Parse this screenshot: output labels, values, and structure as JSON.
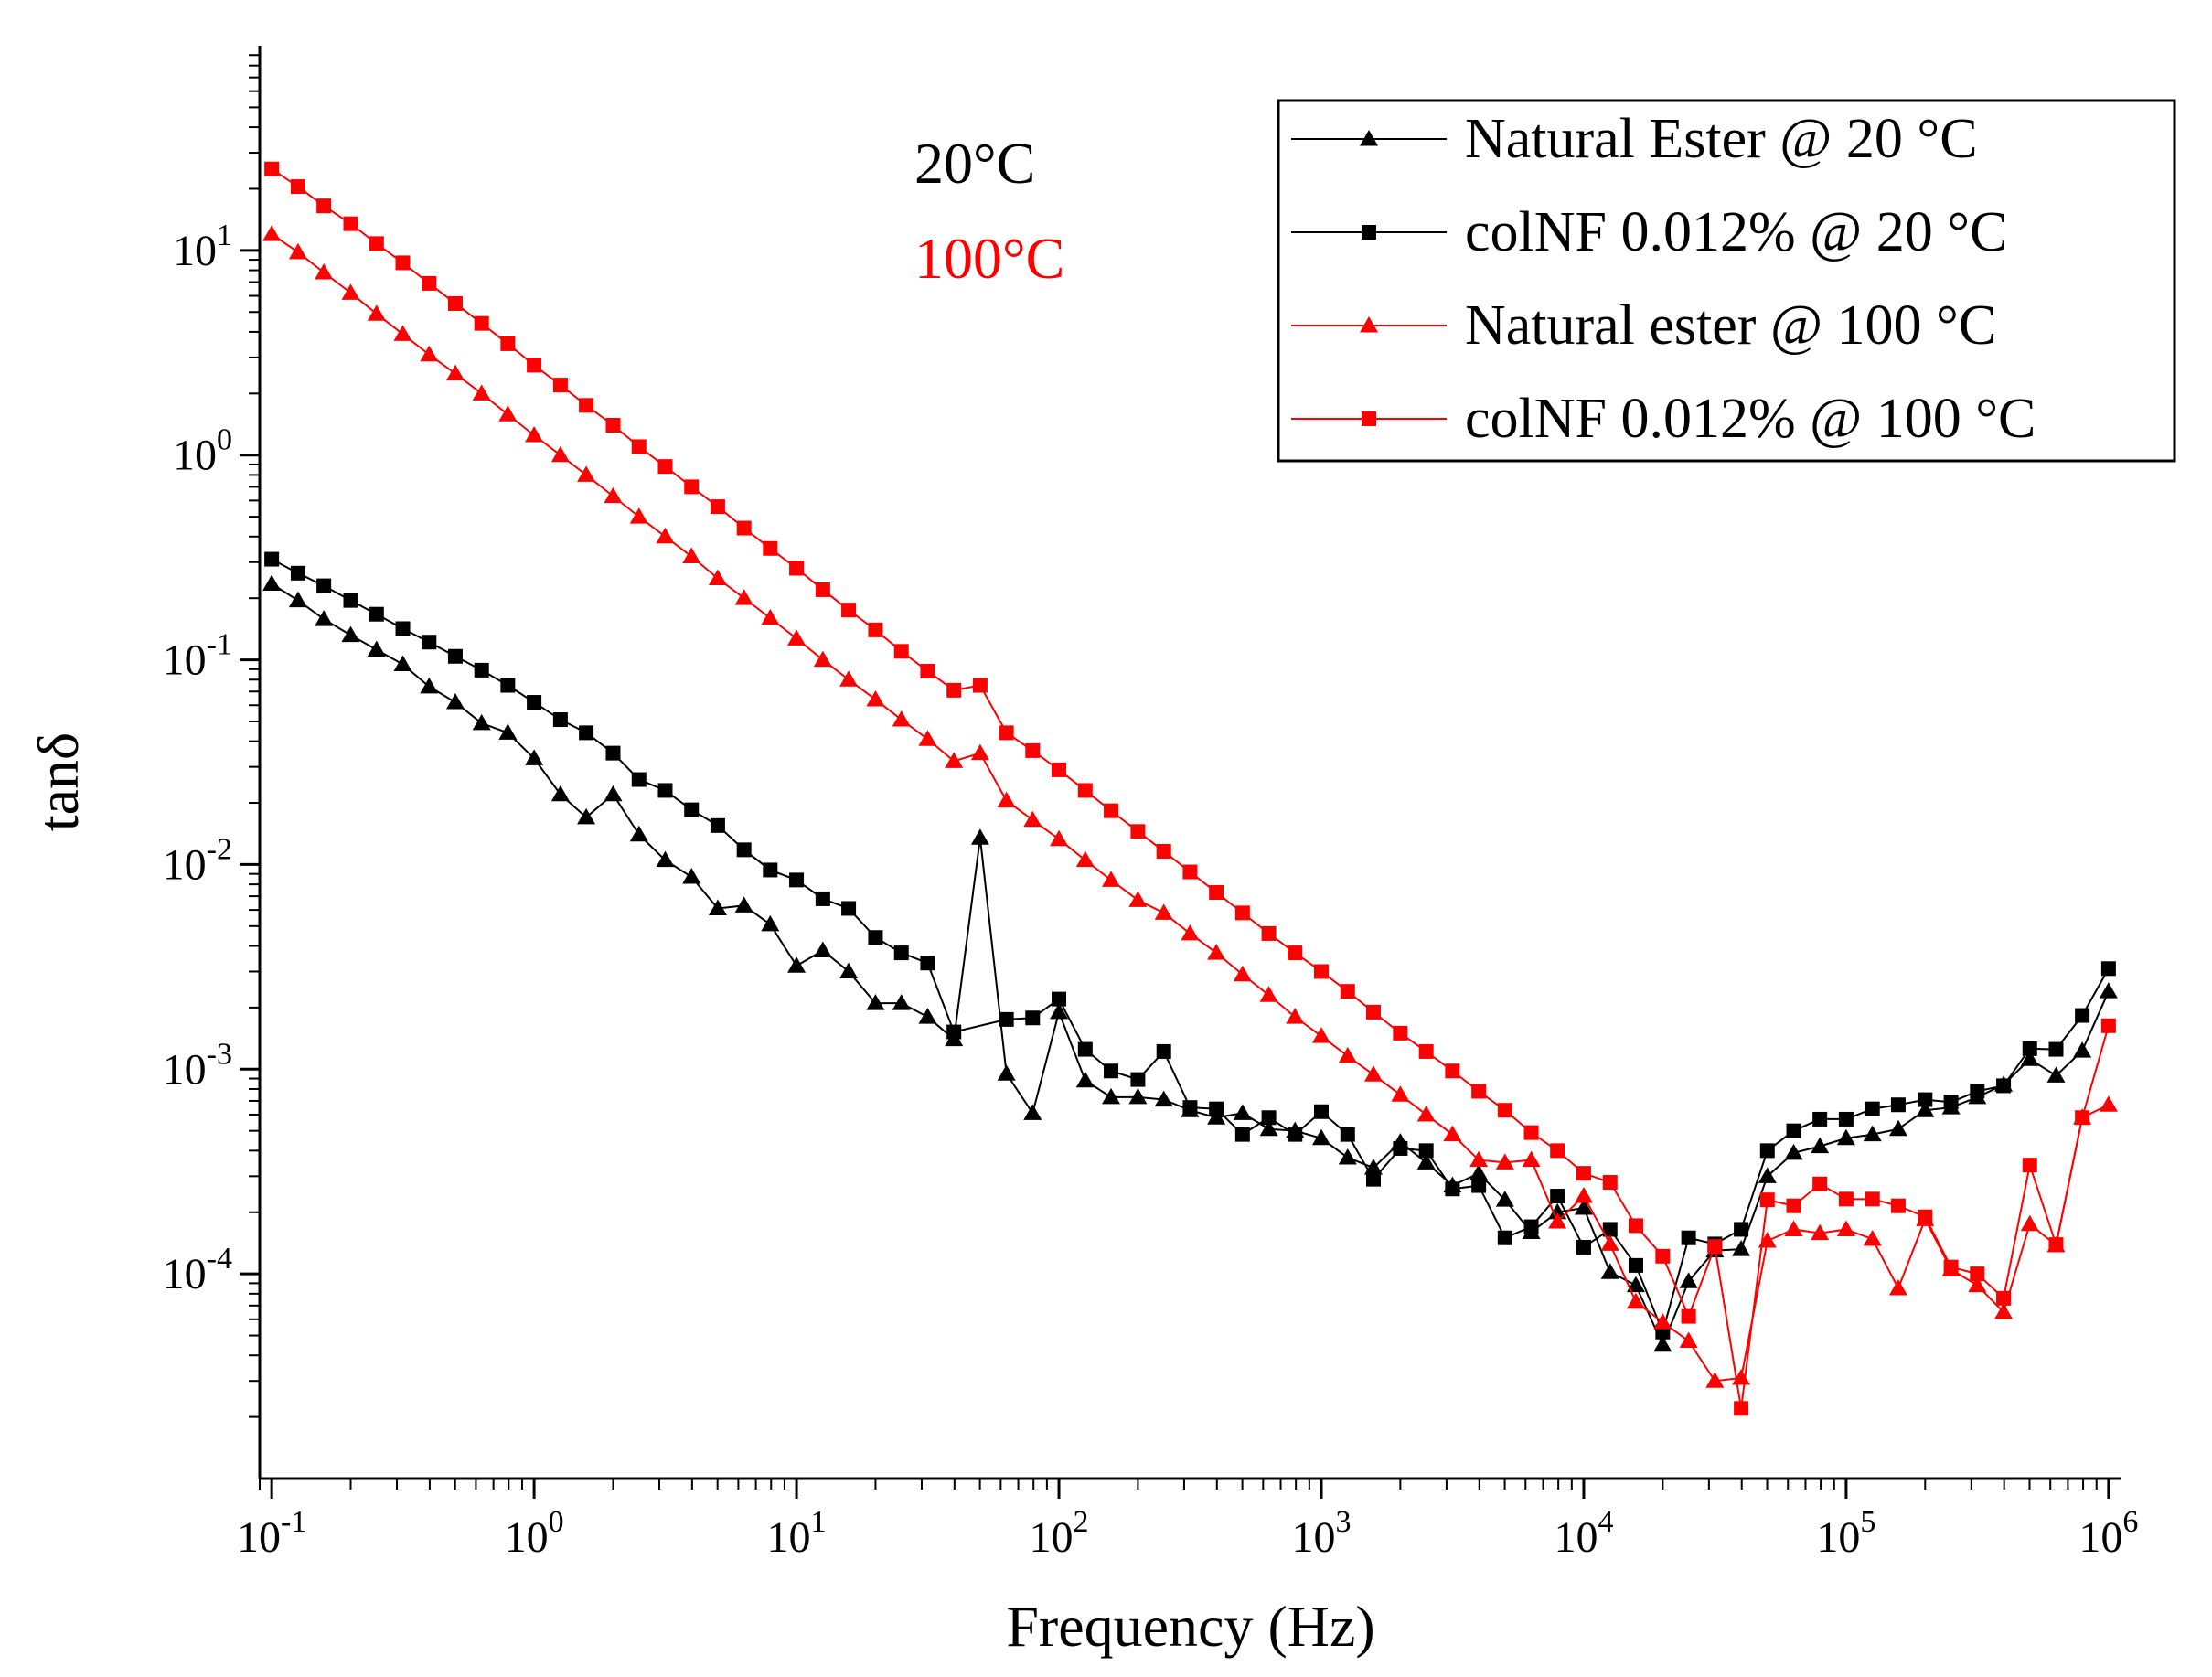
{
  "chart_data": {
    "type": "line",
    "xscale": "log",
    "yscale": "log",
    "xlabel": "Frequency (Hz)",
    "ylabel": "tanδ",
    "xlim": [
      0.09,
      1120000.0
    ],
    "ylim": [
      1e-05,
      100.0
    ],
    "xticks": [
      {
        "base": "10",
        "exp": "-1",
        "value": 0.1
      },
      {
        "base": "10",
        "exp": "0",
        "value": 1
      },
      {
        "base": "10",
        "exp": "1",
        "value": 10
      },
      {
        "base": "10",
        "exp": "2",
        "value": 100
      },
      {
        "base": "10",
        "exp": "3",
        "value": 1000
      },
      {
        "base": "10",
        "exp": "4",
        "value": 10000
      },
      {
        "base": "10",
        "exp": "5",
        "value": 100000
      },
      {
        "base": "10",
        "exp": "6",
        "value": 1000000
      }
    ],
    "yticks": [
      {
        "base": "10",
        "exp": "1",
        "value": 10
      },
      {
        "base": "10",
        "exp": "0",
        "value": 1
      },
      {
        "base": "10",
        "exp": "-1",
        "value": 0.1
      },
      {
        "base": "10",
        "exp": "-2",
        "value": 0.01
      },
      {
        "base": "10",
        "exp": "-3",
        "value": 0.001
      },
      {
        "base": "10",
        "exp": "-4",
        "value": 0.0001
      }
    ],
    "annotations": [
      {
        "text": "20°C",
        "color": "#000000"
      },
      {
        "text": "100°C",
        "color": "#ff0000"
      }
    ],
    "legend_position": "top-right",
    "series": [
      {
        "name": "Natural Ester @ 20 °C",
        "color": "#000000",
        "marker": "triangle",
        "x": [
          0.1,
          0.126,
          0.158,
          0.2,
          0.251,
          0.316,
          0.398,
          0.501,
          0.631,
          0.794,
          1,
          1.26,
          1.58,
          2,
          2.51,
          3.16,
          3.98,
          5.01,
          6.31,
          7.94,
          10,
          12.6,
          15.8,
          20,
          25.1,
          31.6,
          39.8,
          50.1,
          63.1,
          79.4,
          100,
          126,
          158,
          200,
          251,
          316,
          398,
          501,
          631,
          794,
          1000,
          1260,
          1580,
          2000,
          2510,
          3160,
          3980,
          5010,
          6310,
          7940,
          10000,
          12600,
          15800,
          20000,
          25100,
          31600,
          39800,
          50100,
          63100,
          79400,
          100000,
          126000,
          158000,
          200000,
          251000,
          316000,
          398000,
          501000,
          631000,
          794000,
          1000000
        ],
        "values": [
          0.235,
          0.195,
          0.158,
          0.132,
          0.112,
          0.095,
          0.074,
          0.062,
          0.049,
          0.044,
          0.033,
          0.022,
          0.017,
          0.022,
          0.014,
          0.0105,
          0.0087,
          0.0061,
          0.0063,
          0.0051,
          0.0032,
          0.0038,
          0.003,
          0.0021,
          0.0021,
          0.0018,
          0.0014,
          0.0135,
          0.00095,
          0.00061,
          0.0019,
          0.00088,
          0.00073,
          0.00073,
          0.00071,
          0.00063,
          0.00058,
          0.00061,
          0.00051,
          0.0005,
          0.00046,
          0.00037,
          0.00033,
          0.00044,
          0.00035,
          0.00027,
          0.00031,
          0.00023,
          0.00016,
          0.0002,
          0.00021,
          0.000102,
          8.8e-05,
          4.5e-05,
          9.2e-05,
          0.00013,
          0.000132,
          0.0003,
          0.00039,
          0.00042,
          0.00046,
          0.00048,
          0.00051,
          0.00063,
          0.00065,
          0.00073,
          0.00084,
          0.00112,
          0.00093,
          0.00123,
          0.0024
        ]
      },
      {
        "name": "colNF 0.012% @ 20 °C",
        "color": "#000000",
        "marker": "square",
        "x": [
          0.1,
          0.126,
          0.158,
          0.2,
          0.251,
          0.316,
          0.398,
          0.501,
          0.631,
          0.794,
          1,
          1.26,
          1.58,
          2,
          2.51,
          3.16,
          3.98,
          5.01,
          6.31,
          7.94,
          10,
          12.6,
          15.8,
          20,
          25.1,
          31.6,
          39.8,
          63.1,
          79.4,
          100,
          126,
          158,
          200,
          251,
          316,
          398,
          501,
          631,
          794,
          1000,
          1260,
          1580,
          2000,
          2510,
          3160,
          3980,
          5010,
          6310,
          7940,
          10000,
          12600,
          15800,
          20000,
          25100,
          31600,
          39800,
          50100,
          63100,
          79400,
          100000,
          126000,
          158000,
          200000,
          251000,
          316000,
          398000,
          501000,
          631000,
          794000,
          1000000
        ],
        "values": [
          0.31,
          0.265,
          0.23,
          0.195,
          0.167,
          0.142,
          0.122,
          0.104,
          0.089,
          0.075,
          0.062,
          0.051,
          0.044,
          0.035,
          0.026,
          0.023,
          0.0185,
          0.0155,
          0.0118,
          0.0094,
          0.0084,
          0.0068,
          0.0061,
          0.0044,
          0.0037,
          0.0033,
          0.00152,
          0.00175,
          0.00178,
          0.0022,
          0.00125,
          0.00098,
          0.00089,
          0.00122,
          0.00065,
          0.00064,
          0.00048,
          0.00058,
          0.00048,
          0.00062,
          0.00048,
          0.00029,
          0.00041,
          0.0004,
          0.00026,
          0.00027,
          0.00015,
          0.00017,
          0.00024,
          0.000135,
          0.000165,
          0.00011,
          5.2e-05,
          0.00015,
          0.00014,
          0.000165,
          0.0004,
          0.0005,
          0.00057,
          0.00057,
          0.00064,
          0.00067,
          0.00071,
          0.00069,
          0.00078,
          0.00083,
          0.00126,
          0.00125,
          0.00183,
          0.0031
        ]
      },
      {
        "name": "Natural ester @ 100 °C",
        "color": "#ff0000",
        "marker": "triangle",
        "x": [
          0.1,
          0.126,
          0.158,
          0.2,
          0.251,
          0.316,
          0.398,
          0.501,
          0.631,
          0.794,
          1,
          1.26,
          1.58,
          2,
          2.51,
          3.16,
          3.98,
          5.01,
          6.31,
          7.94,
          10,
          12.6,
          15.8,
          20,
          25.1,
          31.6,
          39.8,
          50.1,
          63.1,
          79.4,
          100,
          126,
          158,
          200,
          251,
          316,
          398,
          501,
          631,
          794,
          1000,
          1260,
          1580,
          2000,
          2510,
          3160,
          3980,
          5010,
          6310,
          7940,
          10000,
          12600,
          15800,
          20000,
          25100,
          31600,
          39800,
          50100,
          63100,
          79400,
          100000,
          126000,
          158000,
          200000,
          251000,
          316000,
          398000,
          501000,
          631000,
          794000,
          1000000
        ],
        "values": [
          12.0,
          9.8,
          7.8,
          6.2,
          4.9,
          3.9,
          3.1,
          2.5,
          2.0,
          1.58,
          1.25,
          1.0,
          0.8,
          0.63,
          0.5,
          0.4,
          0.32,
          0.25,
          0.2,
          0.16,
          0.127,
          0.1,
          0.08,
          0.064,
          0.051,
          0.041,
          0.032,
          0.035,
          0.0205,
          0.0165,
          0.0133,
          0.0105,
          0.0084,
          0.0067,
          0.0058,
          0.0046,
          0.0037,
          0.0029,
          0.0023,
          0.0018,
          0.00145,
          0.00116,
          0.00094,
          0.00075,
          0.0006,
          0.00048,
          0.00036,
          0.00035,
          0.00036,
          0.00018,
          0.00024,
          0.00014,
          7.3e-05,
          5.8e-05,
          4.7e-05,
          3e-05,
          3.1e-05,
          0.000145,
          0.000165,
          0.000158,
          0.000165,
          0.000148,
          8.5e-05,
          0.000185,
          0.000105,
          8.8e-05,
          6.5e-05,
          0.000175,
          0.000138,
          0.00058,
          0.00067
        ]
      },
      {
        "name": "colNF 0.012% @ 100 °C",
        "color": "#ff0000",
        "marker": "square",
        "x": [
          0.1,
          0.126,
          0.158,
          0.2,
          0.251,
          0.316,
          0.398,
          0.501,
          0.631,
          0.794,
          1,
          1.26,
          1.58,
          2,
          2.51,
          3.16,
          3.98,
          5.01,
          6.31,
          7.94,
          10,
          12.6,
          15.8,
          20,
          25.1,
          31.6,
          39.8,
          50.1,
          63.1,
          79.4,
          100,
          126,
          158,
          200,
          251,
          316,
          398,
          501,
          631,
          794,
          1000,
          1260,
          1580,
          2000,
          2510,
          3160,
          3980,
          5010,
          6310,
          7940,
          10000,
          12600,
          15800,
          20000,
          25100,
          31600,
          39800,
          50100,
          63100,
          79400,
          100000,
          126000,
          158000,
          200000,
          251000,
          316000,
          398000,
          501000,
          631000,
          794000,
          1000000
        ],
        "values": [
          25.0,
          20.5,
          16.5,
          13.5,
          10.8,
          8.7,
          6.9,
          5.5,
          4.4,
          3.5,
          2.75,
          2.2,
          1.75,
          1.4,
          1.1,
          0.88,
          0.7,
          0.56,
          0.44,
          0.35,
          0.28,
          0.22,
          0.175,
          0.14,
          0.11,
          0.088,
          0.071,
          0.075,
          0.044,
          0.036,
          0.029,
          0.023,
          0.0183,
          0.0145,
          0.0116,
          0.0092,
          0.0073,
          0.0058,
          0.0046,
          0.0037,
          0.003,
          0.0024,
          0.0019,
          0.0015,
          0.00122,
          0.00098,
          0.00078,
          0.00063,
          0.00049,
          0.0004,
          0.00031,
          0.00028,
          0.000172,
          0.000122,
          6.2e-05,
          0.000136,
          2.2e-05,
          0.00023,
          0.000215,
          0.000275,
          0.000232,
          0.000232,
          0.000215,
          0.00019,
          0.000108,
          0.0001,
          7.6e-05,
          0.00034,
          0.000139,
          0.00058,
          0.00163
        ]
      }
    ]
  }
}
